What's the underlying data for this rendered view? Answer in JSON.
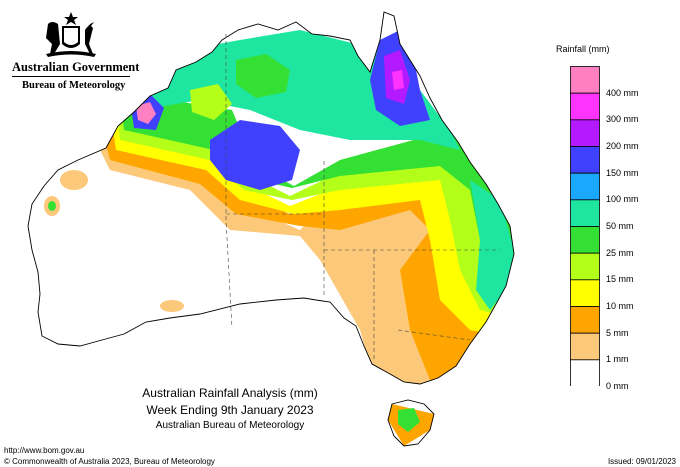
{
  "header": {
    "government": "Australian Government",
    "bureau": "Bureau of Meteorology"
  },
  "legend": {
    "title": "Rainfall (mm)",
    "items": [
      {
        "label": "400 mm",
        "color": "#ff80c0"
      },
      {
        "label": "300 mm",
        "color": "#ff33ff"
      },
      {
        "label": "200 mm",
        "color": "#b31aff"
      },
      {
        "label": "150 mm",
        "color": "#4040ff"
      },
      {
        "label": "100 mm",
        "color": "#1aa8ff"
      },
      {
        "label": "50 mm",
        "color": "#1ee6a0"
      },
      {
        "label": "25 mm",
        "color": "#33e033"
      },
      {
        "label": "15 mm",
        "color": "#b3ff1a"
      },
      {
        "label": "10 mm",
        "color": "#ffff00"
      },
      {
        "label": "5 mm",
        "color": "#ffa500"
      },
      {
        "label": "1 mm",
        "color": "#fcc87a"
      },
      {
        "label": "0 mm",
        "color": "#ffffff"
      }
    ]
  },
  "caption": {
    "line1": "Australian Rainfall Analysis (mm)",
    "line2": "Week Ending 9th January 2023",
    "line3": "Australian Bureau of Meteorology"
  },
  "footer": {
    "url": "http://www.bom.gov.au",
    "copyright": "© Commonwealth of Australia 2023, Bureau of Meteorology",
    "issued": "Issued: 09/01/2023"
  }
}
